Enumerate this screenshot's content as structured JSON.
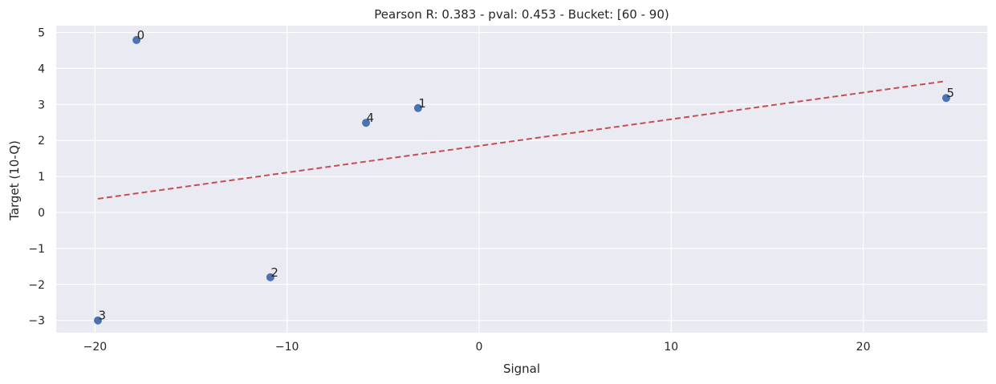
{
  "chart_data": {
    "type": "scatter",
    "title": "Pearson R: 0.383 - pval: 0.453 - Bucket: [60 - 90)",
    "xlabel": "Signal",
    "ylabel": "Target (10-Q)",
    "xlim": [
      -22.2,
      26.5
    ],
    "ylim": [
      -3.35,
      5.2
    ],
    "xticks": [
      -20,
      -10,
      0,
      10,
      20
    ],
    "xtick_labels": [
      "−20",
      "−10",
      "0",
      "10",
      "20"
    ],
    "yticks": [
      -3,
      -2,
      -1,
      0,
      1,
      2,
      3,
      4,
      5
    ],
    "ytick_labels": [
      "−3",
      "−2",
      "−1",
      "0",
      "1",
      "2",
      "3",
      "4",
      "5"
    ],
    "grid": true,
    "legend": null,
    "points": [
      {
        "label": "0",
        "x": -17.84,
        "y": 4.79
      },
      {
        "label": "1",
        "x": -3.18,
        "y": 2.9
      },
      {
        "label": "2",
        "x": -10.87,
        "y": -1.8
      },
      {
        "label": "3",
        "x": -19.85,
        "y": -3.0
      },
      {
        "label": "4",
        "x": -5.89,
        "y": 2.49
      },
      {
        "label": "5",
        "x": 24.32,
        "y": 3.18
      }
    ],
    "fit_line": {
      "x": [
        -19.85,
        24.32
      ],
      "y": [
        0.38,
        3.65
      ],
      "style": "dashed"
    },
    "colors": {
      "points": "#4c72b0",
      "fit_line": "#c44e52",
      "background": "#eaeaf2",
      "grid": "#ffffff"
    }
  }
}
